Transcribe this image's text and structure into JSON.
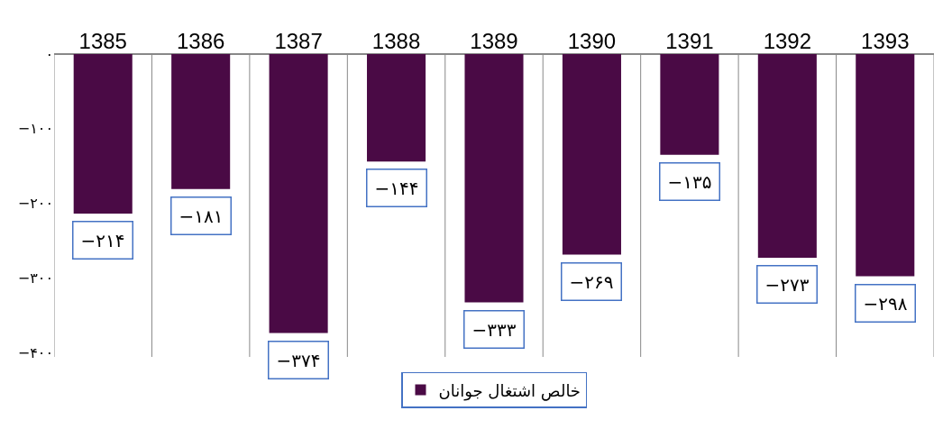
{
  "chart_data": {
    "type": "bar",
    "categories": [
      "1385",
      "1386",
      "1387",
      "1388",
      "1389",
      "1390",
      "1391",
      "1392",
      "1393"
    ],
    "series": [
      {
        "name": "خالص اشتغال جوانان",
        "color": "#4a0a45",
        "values": [
          -214,
          -181,
          -374,
          -144,
          -333,
          -269,
          -135,
          -273,
          -298
        ],
        "value_labels": [
          "−۲۱۴",
          "−۱۸۱",
          "−۳۷۴",
          "−۱۴۴",
          "−۳۳۳",
          "−۲۶۹",
          "−۱۳۵",
          "−۲۷۳",
          "−۲۹۸"
        ]
      }
    ],
    "ylim": [
      -406,
      0
    ],
    "yticks": [
      {
        "value": 0,
        "label": "۰"
      },
      {
        "value": -100,
        "label": "−۱۰۰"
      },
      {
        "value": -200,
        "label": "−۲۰۰"
      },
      {
        "value": -300,
        "label": "−۳۰۰"
      },
      {
        "value": -400,
        "label": "−۴۰۰"
      }
    ],
    "grid": "x",
    "legend": "bottom"
  }
}
